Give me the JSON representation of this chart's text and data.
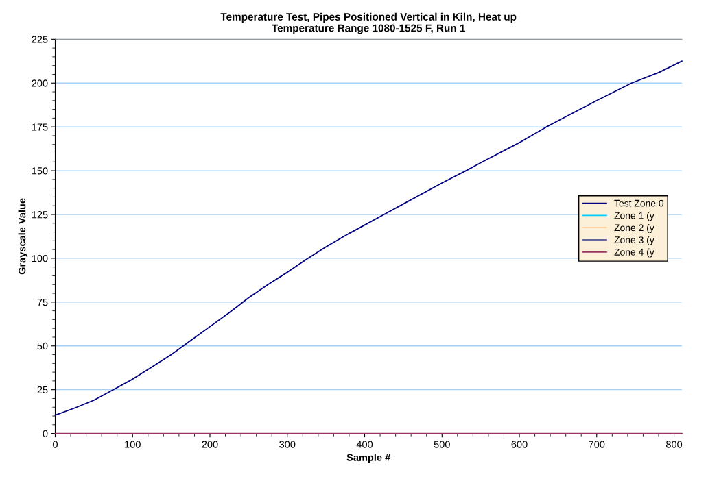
{
  "chart_data": {
    "type": "line",
    "title": "Temperature Test, Pipes Positioned Vertical in Kiln, Heat up\nTemperature Range 1080-1525 F, Run 1",
    "xlabel": "Sample #",
    "ylabel": "Grayscale Value",
    "xlim": [
      0,
      810
    ],
    "xticks": [
      0,
      100,
      200,
      300,
      400,
      500,
      600,
      700,
      800
    ],
    "ylim": [
      0,
      225
    ],
    "yticks": [
      0,
      25,
      50,
      75,
      100,
      125,
      150,
      175,
      200,
      225
    ],
    "grid": "y",
    "legend": "right",
    "marker": "none",
    "line_style": "solid",
    "series": [
      {
        "name": "Test Zone 0",
        "color": "#000080",
        "x": [
          0,
          25,
          50,
          75,
          100,
          125,
          150,
          175,
          200,
          225,
          250,
          275,
          300,
          325,
          350,
          375,
          400,
          425,
          450,
          500,
          531,
          550,
          600,
          635,
          650,
          700,
          745,
          780,
          810
        ],
        "values": [
          10.5,
          14.5,
          19,
          25,
          31,
          38,
          45,
          53,
          61,
          69,
          77.5,
          85,
          92,
          99.5,
          106.5,
          113,
          119,
          125,
          131,
          143,
          150,
          154.5,
          166,
          175,
          178.5,
          190,
          200,
          206,
          212.5
        ]
      },
      {
        "name": "Zone 1 (y",
        "color": "#00ccff"
      },
      {
        "name": "Zone 2 (y",
        "color": "#ffcc99"
      },
      {
        "name": "Zone 3 (y",
        "color": "#666699"
      },
      {
        "name": "Zone 4 (y",
        "color": "#993366",
        "x": [
          0,
          810
        ],
        "values": [
          0,
          0
        ]
      }
    ]
  }
}
